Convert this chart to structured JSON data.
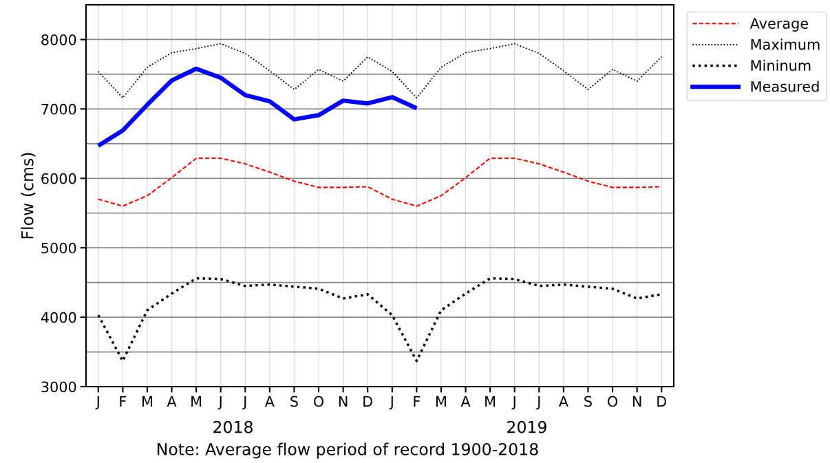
{
  "chart_data": {
    "type": "line",
    "ylabel": "Flow (cms)",
    "categories": [
      "J",
      "F",
      "M",
      "A",
      "M",
      "J",
      "J",
      "A",
      "S",
      "O",
      "N",
      "D",
      "J",
      "F",
      "M",
      "A",
      "M",
      "J",
      "J",
      "A",
      "S",
      "O",
      "N",
      "D"
    ],
    "series": [
      {
        "name": "Average",
        "color": "#ff0000",
        "line_style": "dashed",
        "values": [
          5700,
          5600,
          5750,
          6010,
          6290,
          6290,
          6210,
          6090,
          5960,
          5870,
          5870,
          5880,
          5700,
          5600,
          5750,
          6010,
          6290,
          6290,
          6210,
          6090,
          5960,
          5870,
          5870,
          5880
        ]
      },
      {
        "name": "Maximum",
        "color": "#000000",
        "line_style": "dotted",
        "values": [
          7540,
          7160,
          7600,
          7810,
          7870,
          7940,
          7800,
          7550,
          7280,
          7570,
          7400,
          7750,
          7540,
          7160,
          7600,
          7810,
          7870,
          7940,
          7800,
          7550,
          7280,
          7570,
          7400,
          7750
        ]
      },
      {
        "name": "Mininum",
        "color": "#000000",
        "line_style": "dotted",
        "values": [
          4030,
          3370,
          4100,
          4340,
          4560,
          4550,
          4450,
          4470,
          4440,
          4410,
          4270,
          4330,
          4030,
          3370,
          4100,
          4340,
          4560,
          4550,
          4450,
          4470,
          4440,
          4410,
          4270,
          4330
        ]
      },
      {
        "name": "Measured",
        "color": "#0000ff",
        "line_style": "solid",
        "values": [
          6470,
          6690,
          7060,
          7410,
          7580,
          7450,
          7200,
          7110,
          6850,
          6910,
          7120,
          7080,
          7170,
          7010,
          null,
          null,
          null,
          null,
          null,
          null,
          null,
          null,
          null,
          null
        ]
      }
    ],
    "ylim": [
      3000,
      8500
    ],
    "yticks": [
      3000,
      {
        "value": 3500,
        "label": null
      },
      4000,
      {
        "value": 4500,
        "label": null
      },
      5000,
      {
        "value": 5500,
        "label": null
      },
      6000,
      {
        "value": 6500,
        "label": null
      },
      7000,
      {
        "value": 7500,
        "label": null
      },
      8000
    ],
    "grid": true,
    "legend": "top right",
    "marker": "none",
    "annotations": [
      "2018",
      "2019",
      "Note: Average flow period of record 1900-2018"
    ]
  }
}
